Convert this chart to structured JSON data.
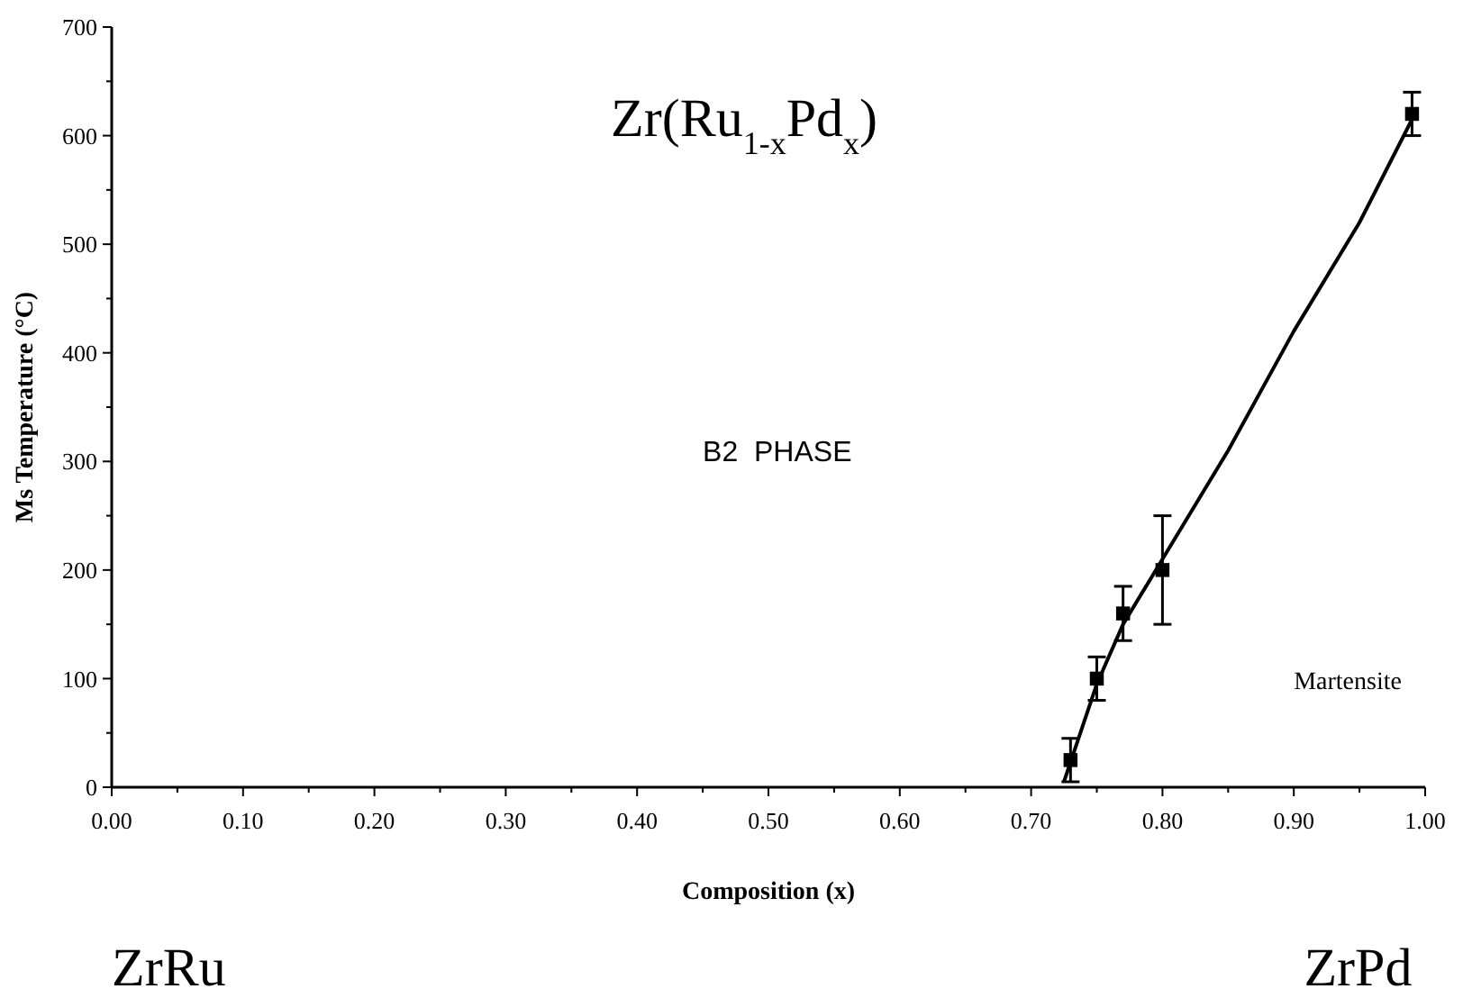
{
  "chart_data": {
    "type": "scatter",
    "title": "Zr(Ru$_{1-x}$Pd$_{x}$)",
    "xlabel": "Composition (x)",
    "ylabel": "Ms Temperature (°C)",
    "xlim": [
      0,
      1
    ],
    "ylim": [
      0,
      700
    ],
    "xticks": [
      {
        "value": 0,
        "label": "0.00"
      },
      {
        "value": 0.05,
        "label": null
      },
      {
        "value": 0.1,
        "label": "0.10"
      },
      {
        "value": 0.15,
        "label": null
      },
      {
        "value": 0.2,
        "label": "0.20"
      },
      {
        "value": 0.25,
        "label": null
      },
      {
        "value": 0.3,
        "label": "0.30"
      },
      {
        "value": 0.35,
        "label": null
      },
      {
        "value": 0.4,
        "label": "0.40"
      },
      {
        "value": 0.45,
        "label": null
      },
      {
        "value": 0.5,
        "label": "0.50"
      },
      {
        "value": 0.55,
        "label": null
      },
      {
        "value": 0.6,
        "label": "0.60"
      },
      {
        "value": 0.65,
        "label": null
      },
      {
        "value": 0.7,
        "label": "0.70"
      },
      {
        "value": 0.75,
        "label": null
      },
      {
        "value": 0.8,
        "label": "0.80"
      },
      {
        "value": 0.85,
        "label": null
      },
      {
        "value": 0.9,
        "label": "0.90"
      },
      {
        "value": 0.95,
        "label": null
      },
      {
        "value": 1,
        "label": "1.00"
      }
    ],
    "yticks": [
      0,
      {
        "value": 50,
        "label": null
      },
      100,
      {
        "value": 150,
        "label": null
      },
      200,
      {
        "value": 250,
        "label": null
      },
      300,
      {
        "value": 350,
        "label": null
      },
      400,
      {
        "value": 450,
        "label": null
      },
      500,
      {
        "value": 550,
        "label": null
      },
      600,
      {
        "value": 650,
        "label": null
      },
      700
    ],
    "grid": false,
    "annotations": [
      "B2  PHASE",
      "Martensite",
      "ZrRu",
      "ZrPd"
    ],
    "series": [
      {
        "color": "#000000",
        "marker": "square",
        "x": [
          0.73,
          0.75,
          0.77,
          0.8,
          0.99
        ],
        "values": [
          25,
          100,
          160,
          200,
          620
        ],
        "errors": [
          20,
          20,
          25,
          50,
          20
        ]
      },
      {
        "type": "line",
        "color": "#000000",
        "marker": "none",
        "line_style": "solid",
        "x": [
          0.725,
          0.75,
          0.77,
          0.8,
          0.85,
          0.9,
          0.95,
          0.99
        ],
        "values": [
          5,
          95,
          150,
          210,
          310,
          420,
          520,
          615
        ]
      }
    ]
  }
}
